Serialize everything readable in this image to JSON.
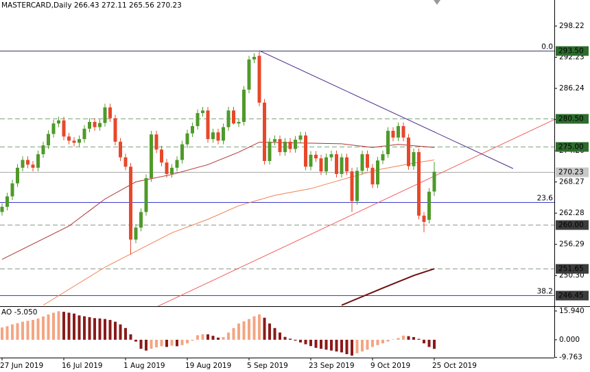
{
  "chart_data": {
    "type": "candlestick",
    "title": "MASTERCARD,Daily  266.43 272.11 265.56 270.23",
    "categories": [
      "27 Jun 2019",
      null,
      null,
      null,
      null,
      null,
      null,
      null,
      null,
      null,
      null,
      null,
      "16 Jul 2019",
      null,
      null,
      null,
      null,
      null,
      null,
      null,
      null,
      null,
      null,
      null,
      "1 Aug 2019",
      null,
      null,
      null,
      null,
      null,
      null,
      null,
      null,
      null,
      null,
      null,
      "19 Aug 2019",
      null,
      null,
      null,
      null,
      null,
      null,
      null,
      null,
      null,
      null,
      null,
      "5 Sep 2019",
      null,
      null,
      null,
      null,
      null,
      null,
      null,
      null,
      null,
      null,
      null,
      "23 Sep 2019",
      null,
      null,
      null,
      null,
      null,
      null,
      null,
      null,
      null,
      null,
      null,
      "9 Oct 2019",
      null,
      null,
      null,
      null,
      null,
      null,
      null,
      null,
      null,
      null,
      null,
      "25 Oct 2019"
    ],
    "open": [
      262.5,
      263.5,
      265.5,
      268,
      271,
      272.5,
      271.6,
      271,
      273.6,
      275.3,
      277.5,
      279.5,
      280.1,
      277,
      276.2,
      275.8,
      276.5,
      278.5,
      279.8,
      278.8,
      279.6,
      282.6,
      280.5,
      276,
      273,
      271.2,
      257.2,
      259.5,
      262.5,
      269,
      277.4,
      274.5,
      272,
      269.8,
      271,
      272.5,
      275.5,
      277.6,
      279,
      281.5,
      282,
      276.5,
      277.8,
      276.2,
      278.8,
      282,
      279.5,
      279.8,
      286,
      291.8,
      292.5,
      283.5,
      272.3,
      276,
      276.5,
      274,
      276,
      274.6,
      276.4,
      277.2,
      271.2,
      273.5,
      272.8,
      270.3,
      273,
      273.6,
      269.8,
      273,
      270.3,
      264.6,
      270.4,
      273.6,
      271,
      267.8,
      272.4,
      273.6,
      278.1,
      276.8,
      279,
      276.8,
      271.3,
      274,
      261.8,
      261,
      266.43
    ],
    "high": [
      264.2,
      266.2,
      268.7,
      271.7,
      273.2,
      273.2,
      272.3,
      274.3,
      276,
      278.2,
      280.2,
      280.8,
      280.8,
      277.7,
      276.9,
      277.2,
      279.2,
      280.5,
      280.5,
      280.3,
      283.3,
      283.3,
      281.2,
      276.7,
      273.7,
      271.9,
      260.2,
      263.2,
      269.7,
      278.1,
      278.1,
      275.2,
      272.7,
      271.7,
      273.2,
      276.2,
      278.3,
      279.7,
      282.2,
      282.7,
      282.7,
      278.5,
      278.5,
      279.5,
      282.7,
      282.7,
      280.5,
      286.7,
      292.5,
      293,
      293.5,
      284.2,
      276.7,
      277.2,
      277.2,
      276.7,
      276.7,
      277.1,
      277.9,
      277.9,
      274.2,
      274.2,
      273.5,
      273.7,
      274.3,
      274.3,
      273.7,
      273.7,
      271,
      271.1,
      274.3,
      274.3,
      271.7,
      273.1,
      274.3,
      278.8,
      278.8,
      279.7,
      279.7,
      277.5,
      274.7,
      274.7,
      262.5,
      267.1,
      272.11
    ],
    "low": [
      261.8,
      262.8,
      264.8,
      267.3,
      270.3,
      270.9,
      270.3,
      270.3,
      272.9,
      274.6,
      276.8,
      278.8,
      276.3,
      275.5,
      275.1,
      275.1,
      275.8,
      277.8,
      278.1,
      278.1,
      278.9,
      279.8,
      275.3,
      272.3,
      270.5,
      254.3,
      256.5,
      258.8,
      261.8,
      268.3,
      273.8,
      271.3,
      269.1,
      269.1,
      270.3,
      271.8,
      274.8,
      276.9,
      278.3,
      280.8,
      275.8,
      275.8,
      275.5,
      275.5,
      278.1,
      279.3,
      278.8,
      279.1,
      285.3,
      291.1,
      282.8,
      271.6,
      271.6,
      275.3,
      273.3,
      273.3,
      273.9,
      273.9,
      275.7,
      270.5,
      270.5,
      272.1,
      269.6,
      269.6,
      272.3,
      269.1,
      269.1,
      269.6,
      262.5,
      263.9,
      269.7,
      270.3,
      267.1,
      267.1,
      271.7,
      272.9,
      276.1,
      276.1,
      276.1,
      270.6,
      270.6,
      261.1,
      258.6,
      260.3,
      265.56
    ],
    "close": [
      263.5,
      265.5,
      268,
      271,
      272.5,
      271.6,
      271,
      273.6,
      275.3,
      277.5,
      279.5,
      280.1,
      277,
      276.2,
      275.8,
      276.5,
      278.5,
      279.8,
      278.8,
      279.6,
      282.6,
      280.5,
      276,
      273,
      271.2,
      257.2,
      259.5,
      262.5,
      269,
      277.4,
      274.5,
      272,
      269.8,
      271,
      272.5,
      275.5,
      277.6,
      279,
      281.5,
      282,
      276.5,
      277.8,
      276.2,
      278.8,
      282,
      279.5,
      279.8,
      286,
      291.8,
      292.3,
      283.5,
      272.3,
      276,
      276.5,
      274,
      276,
      274.6,
      276.4,
      277.2,
      271.2,
      273.5,
      272.8,
      270.3,
      273,
      273.6,
      269.8,
      273,
      270.3,
      264.6,
      270.4,
      273.6,
      271,
      267.8,
      272.4,
      273.6,
      278.1,
      276.8,
      279,
      276.8,
      271.3,
      274,
      261.8,
      260.6,
      266.4,
      270.23
    ],
    "up_color": "#4f9a2a",
    "down_color": "#e8472a",
    "ylim": [
      244.4,
      303.22
    ],
    "yticks": [
      298.22,
      292.23,
      286.24,
      280.25,
      274.26,
      268.27,
      262.28,
      256.29,
      {
        "value": 250.3,
        "label": "250.30"
      }
    ],
    "series": [
      {
        "color": "#b03030",
        "width": 1,
        "x": [
          0,
          13,
          20,
          26,
          33,
          40,
          46,
          50,
          56,
          66,
          72,
          77,
          84
        ],
        "values": [
          253.4,
          259.8,
          265,
          268.3,
          269.7,
          271.6,
          274,
          275.9,
          275.8,
          275.6,
          274.9,
          275.5,
          274.9
        ]
      },
      {
        "color": "#f08050",
        "width": 1,
        "x": [
          8,
          20,
          33,
          40,
          46,
          53,
          60,
          66,
          73,
          80,
          84
        ],
        "values": [
          244.6,
          251.9,
          258.5,
          261.1,
          263.7,
          265.7,
          267,
          268.7,
          270.6,
          271.9,
          272.5
        ]
      },
      {
        "color": "#6b0f0f",
        "width": 2,
        "x": [
          66,
          74,
          80,
          84
        ],
        "values": [
          244.6,
          247.9,
          250.3,
          251.6
        ]
      }
    ],
    "trendlines": [
      {
        "color": "#f06060",
        "x": [
          30.3,
          107.3
        ],
        "values": [
          244.4,
          280.25
        ]
      },
      {
        "color": "#4b2a8a",
        "x": [
          50,
          99.3
        ],
        "values": [
          293.5,
          270.85
        ]
      }
    ],
    "levels": [
      {
        "value": 293.5,
        "label": "293.50",
        "fib": "0.0",
        "color": "#33336b",
        "dash": false,
        "box": "#2e6b2e",
        "text_color": "#ffffff"
      },
      {
        "value": 280.5,
        "label": "280.50",
        "color": "#7aa37a",
        "dash": true,
        "box": "#2e6b2e",
        "text_color": "#ffffff"
      },
      {
        "value": 275,
        "label": "275.00",
        "color": "#7aa37a",
        "dash": true,
        "box": "#2e6b2e",
        "text_color": "#ffffff"
      },
      {
        "value": 270.23,
        "label": "270.23",
        "color": "#a8a8a8",
        "dash": false,
        "box": "#c8c8c8",
        "text_color": "#000000"
      },
      {
        "value": 264.43,
        "fib": "23.6",
        "color": "#3a3acc",
        "dash": false
      },
      {
        "value": 260,
        "label": "260.00",
        "color": "#8a9a8a",
        "dash": true,
        "box": "#3c3c3c",
        "text_color": "#ffffff"
      },
      {
        "value": 251.65,
        "label": "251.65",
        "color": "#8a9a8a",
        "dash": true,
        "box": "#3c3c3c",
        "text_color": "#ffffff"
      },
      {
        "value": 246.45,
        "label": "246.45",
        "fib": "38.2",
        "color": "#3a3acc",
        "dash": false,
        "box": "#3c3c3c",
        "text_color": "#ffffff"
      }
    ],
    "indicator": {
      "type": "histogram",
      "title": "AO -5.050",
      "values": [
        6.8,
        7.5,
        8.5,
        9.2,
        10,
        10.5,
        11,
        11.8,
        12.9,
        14,
        15,
        15.8,
        15.5,
        15,
        14.5,
        13.5,
        13,
        12.5,
        12,
        11.8,
        11.5,
        11,
        10,
        8.5,
        6.5,
        3,
        -1,
        -5,
        -6,
        -5,
        -4.2,
        -3.6,
        -4,
        -3.3,
        -3.6,
        -3,
        -2,
        -0.5,
        2.5,
        3.1,
        3,
        2.2,
        1.2,
        1.5,
        4,
        6.5,
        9,
        10.2,
        11.5,
        13,
        14,
        12.2,
        9,
        6.5,
        4,
        1.6,
        0.6,
        -0.5,
        -1.5,
        -2.5,
        -3.5,
        -4.5,
        -5,
        -5.5,
        -6,
        -6.5,
        -7,
        -8,
        -8.8,
        -7.5,
        -6.5,
        -5.5,
        -4,
        -3,
        -2,
        -1,
        0.2,
        1,
        2.3,
        2,
        1.5,
        0.5,
        -2,
        -4,
        -5.05
      ],
      "up_color": "#f4a582",
      "down_color": "#8b1a1a",
      "ylim": [
        -9.9,
        18.2
      ],
      "yticks": [
        {
          "value": 15.94,
          "label": "15.940"
        },
        {
          "value": 0,
          "label": "0.000"
        },
        -9.763
      ]
    }
  }
}
